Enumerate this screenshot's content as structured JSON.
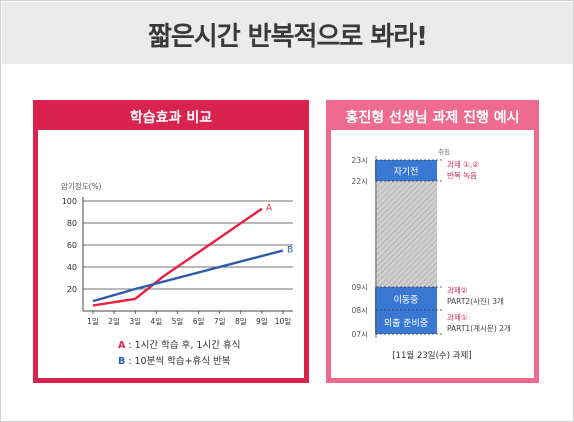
{
  "headline": "짧은시간 반복적으로 봐라!",
  "colors": {
    "primary": "#d8234e",
    "secondary": "#ef6a8f",
    "line_a": "#e8203f",
    "line_b": "#2e5aa8",
    "block": "#3a78d4"
  },
  "left_panel": {
    "title": "학습효과 비교",
    "legend": [
      {
        "key": "A",
        "text": ": 1시간 학습 후, 1시간 휴식",
        "color": "#d8234e"
      },
      {
        "key": "B",
        "text": ": 10분씩 학습+휴식 반복",
        "color": "#2e5aa8"
      }
    ]
  },
  "chart_data": {
    "type": "line",
    "ylabel": "암기정도(%)",
    "xlabel": "",
    "categories": [
      "1일",
      "2일",
      "3일",
      "4일",
      "5일",
      "6일",
      "7일",
      "8일",
      "9일",
      "10일"
    ],
    "x": [
      1,
      2,
      3,
      4,
      5,
      6,
      7,
      8,
      9,
      10
    ],
    "ylim": [
      0,
      100
    ],
    "yticks": [
      20,
      40,
      60,
      80,
      100
    ],
    "grid": true,
    "series": [
      {
        "name": "A",
        "color": "#e8203f",
        "x": [
          1,
          3,
          4.3,
          9
        ],
        "y": [
          5,
          11,
          31,
          93
        ]
      },
      {
        "name": "B",
        "color": "#2e5aa8",
        "x": [
          1,
          3,
          10
        ],
        "y": [
          9,
          20,
          55
        ]
      }
    ]
  },
  "right_panel": {
    "title": "홍진형 선생님 과제 진행 예시",
    "timeline": {
      "top_note": "취침",
      "ticks": [
        {
          "label": "23시",
          "value": 23
        },
        {
          "label": "22시",
          "value": 22
        },
        {
          "label": "09시",
          "value": 9
        },
        {
          "label": "08시",
          "value": 8
        },
        {
          "label": "07시",
          "value": 7
        }
      ],
      "blocks": [
        {
          "label": "자기전",
          "start": 22,
          "end": 23,
          "kind": "activity"
        },
        {
          "label": "",
          "start": 9,
          "end": 22,
          "kind": "sleep"
        },
        {
          "label": "이동중",
          "start": 8,
          "end": 9,
          "kind": "activity"
        },
        {
          "label": "외출 준비중",
          "start": 7,
          "end": 8,
          "kind": "activity"
        }
      ],
      "notes": [
        {
          "lines": [
            "과제 ①,②",
            "반복 녹음"
          ],
          "color": "#d8234e"
        },
        {
          "lines": [
            "과제②",
            "PART2(사진) 3개"
          ],
          "color": "#d8234e"
        },
        {
          "lines": [
            "과제①",
            "PART1(계시문) 2개"
          ],
          "color": "#d8234e"
        }
      ],
      "caption": "[11월 23일(수) 과제]"
    }
  }
}
